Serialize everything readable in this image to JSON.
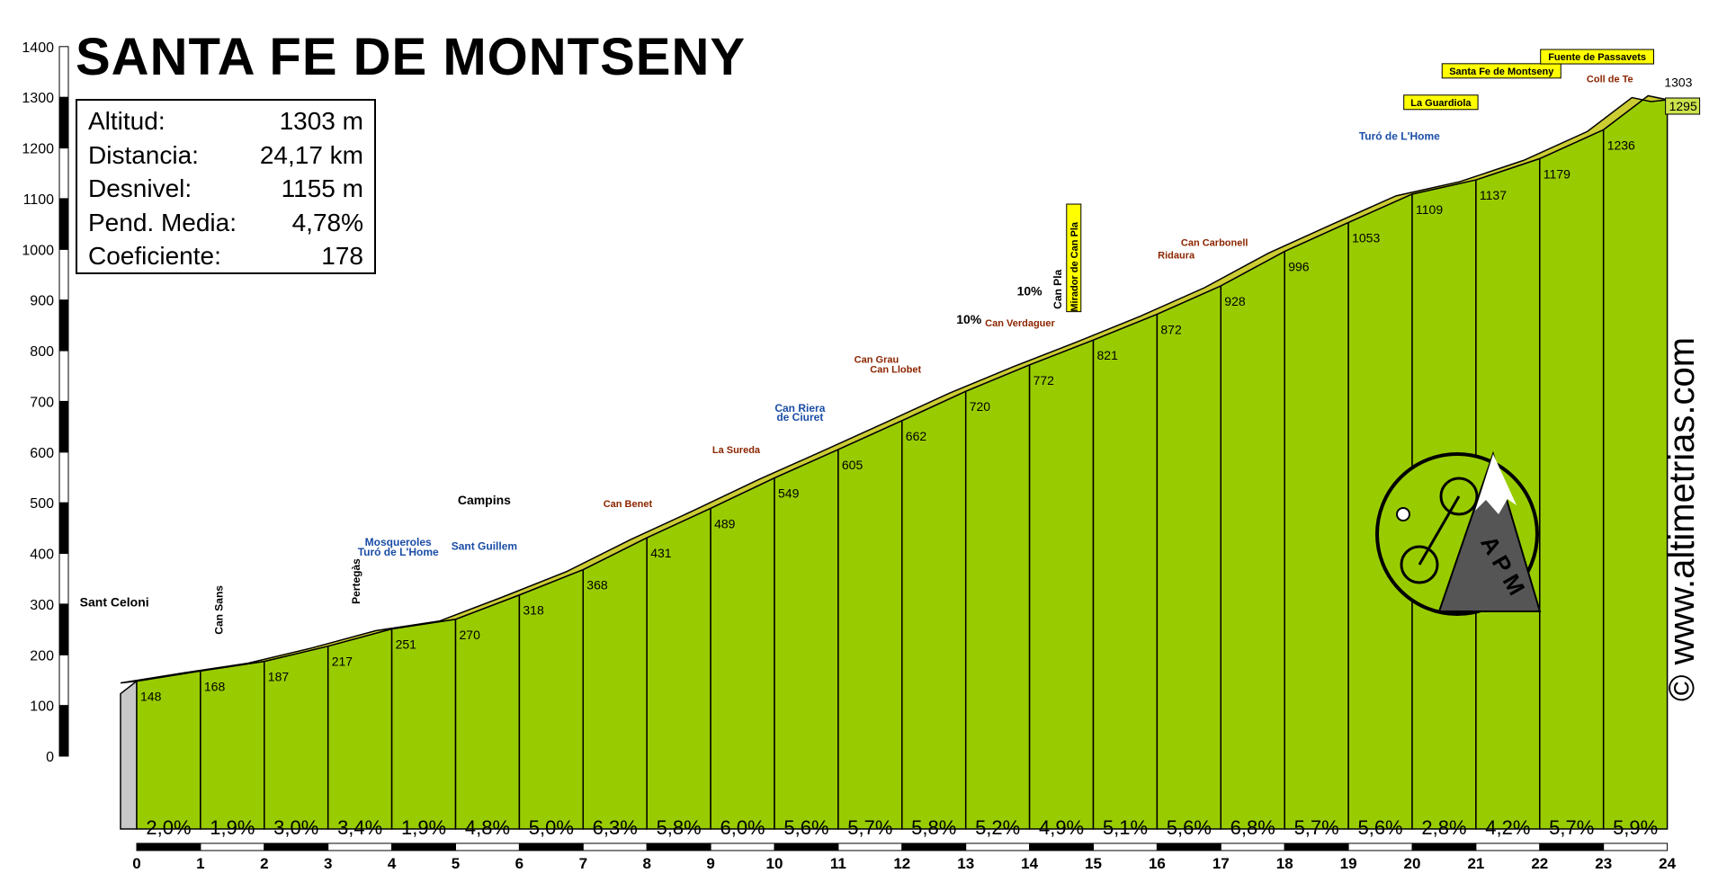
{
  "title": "SANTA FE DE MONTSENY",
  "stats": [
    {
      "label": "Altitud:",
      "value": "1303 m"
    },
    {
      "label": "Distancia:",
      "value": "24,17 km"
    },
    {
      "label": "Desnivel:",
      "value": "1155 m"
    },
    {
      "label": "Pend. Media:",
      "value": "4,78%"
    },
    {
      "label": "Coeficiente:",
      "value": "178"
    }
  ],
  "watermark": "© www.altimetrias.com",
  "logo_text": "A P M",
  "colors": {
    "fill": "#99cc00",
    "road": "#cccc33",
    "text": "#000000",
    "marker": "#993300",
    "blue": "#1a4da6",
    "note": "#8b2500"
  },
  "chart_data": {
    "type": "area",
    "title": "SANTA FE DE MONTSENY",
    "xlabel": "",
    "ylabel": "",
    "x_ticks": [
      0,
      1,
      2,
      3,
      4,
      5,
      6,
      7,
      8,
      9,
      10,
      11,
      12,
      13,
      14,
      15,
      16,
      17,
      18,
      19,
      20,
      21,
      22,
      23,
      24
    ],
    "y_ticks": [
      0,
      100,
      200,
      300,
      400,
      500,
      600,
      700,
      800,
      900,
      1000,
      1100,
      1200,
      1300,
      1400
    ],
    "xlim": [
      0,
      24
    ],
    "ylim": [
      0,
      1400
    ],
    "km_points": [
      {
        "x": 0,
        "y": 148
      },
      {
        "x": 1,
        "y": 168
      },
      {
        "x": 2,
        "y": 187
      },
      {
        "x": 3,
        "y": 217
      },
      {
        "x": 4,
        "y": 251
      },
      {
        "x": 5,
        "y": 270
      },
      {
        "x": 6,
        "y": 318
      },
      {
        "x": 7,
        "y": 368
      },
      {
        "x": 8,
        "y": 431
      },
      {
        "x": 9,
        "y": 489
      },
      {
        "x": 10,
        "y": 549
      },
      {
        "x": 11,
        "y": 605
      },
      {
        "x": 12,
        "y": 662
      },
      {
        "x": 13,
        "y": 720
      },
      {
        "x": 14,
        "y": 772
      },
      {
        "x": 15,
        "y": 821
      },
      {
        "x": 16,
        "y": 872
      },
      {
        "x": 17,
        "y": 928
      },
      {
        "x": 18,
        "y": 996
      },
      {
        "x": 19,
        "y": 1053
      },
      {
        "x": 20,
        "y": 1109
      },
      {
        "x": 21,
        "y": 1137
      },
      {
        "x": 22,
        "y": 1179
      },
      {
        "x": 23,
        "y": 1236
      },
      {
        "x": 24,
        "y": 1295
      }
    ],
    "summit": {
      "x": 23.7,
      "y": 1303,
      "label": "1303"
    },
    "gradients": [
      "2,0%",
      "1,9%",
      "3,0%",
      "3,4%",
      "1,9%",
      "4,8%",
      "5,0%",
      "6,3%",
      "5,8%",
      "6,0%",
      "5,6%",
      "5,7%",
      "5,8%",
      "5,2%",
      "4,9%",
      "5,1%",
      "5,6%",
      "6,8%",
      "5,7%",
      "5,6%",
      "2,8%",
      "4,2%",
      "5,7%",
      "5,9%"
    ],
    "places": [
      {
        "name": "Sant Celoni",
        "x": -0.35,
        "y": 295,
        "style": "black"
      },
      {
        "name": "Can Sans",
        "x": 1.35,
        "y": 240,
        "style": "vblack"
      },
      {
        "name": "Pertegàs",
        "x": 3.5,
        "y": 300,
        "style": "vblack"
      },
      {
        "name": "Mosqueroles",
        "x": 4.1,
        "y": 415,
        "style": "blue"
      },
      {
        "name": "Turó de L'Home",
        "x": 4.1,
        "y": 396,
        "style": "blue"
      },
      {
        "name": "Campins",
        "x": 5.45,
        "y": 497,
        "style": "black"
      },
      {
        "name": "Sant Guillem",
        "x": 5.45,
        "y": 407,
        "style": "blue"
      },
      {
        "name": "Can Benet",
        "x": 7.7,
        "y": 491,
        "style": "note"
      },
      {
        "name": "La Sureda",
        "x": 9.4,
        "y": 598,
        "style": "note"
      },
      {
        "name": "Can Riera",
        "x": 10.4,
        "y": 679,
        "style": "blue"
      },
      {
        "name": "de Ciuret",
        "x": 10.4,
        "y": 662,
        "style": "blue"
      },
      {
        "name": "Can Grau",
        "x": 11.6,
        "y": 776,
        "style": "note"
      },
      {
        "name": "Can Llobet",
        "x": 11.9,
        "y": 757,
        "style": "note"
      },
      {
        "name": "10%",
        "x": 13.05,
        "y": 853,
        "style": "black"
      },
      {
        "name": "10%",
        "x": 14.0,
        "y": 909,
        "style": "black"
      },
      {
        "name": "Can Verdaguer",
        "x": 13.85,
        "y": 848,
        "style": "note"
      },
      {
        "name": "Can Pla",
        "x": 14.5,
        "y": 882,
        "style": "vblack"
      },
      {
        "name": "Mirador de Can Pla",
        "x": 14.75,
        "y": 877,
        "style": "vyellow"
      },
      {
        "name": "Can Carbonell",
        "x": 16.9,
        "y": 1007,
        "style": "note"
      },
      {
        "name": "Ridaura",
        "x": 16.3,
        "y": 982,
        "style": "note"
      },
      {
        "name": "Turó de L'Home",
        "x": 19.8,
        "y": 1216,
        "style": "blue"
      },
      {
        "name": "La Guardiola",
        "x": 20.45,
        "y": 1283,
        "style": "yellow"
      },
      {
        "name": "Santa Fe de Montseny",
        "x": 21.4,
        "y": 1345,
        "style": "yellow"
      },
      {
        "name": "Fuente de Passavets",
        "x": 22.9,
        "y": 1373,
        "style": "yellow"
      },
      {
        "name": "Coll de Te",
        "x": 23.1,
        "y": 1330,
        "style": "note"
      }
    ]
  }
}
